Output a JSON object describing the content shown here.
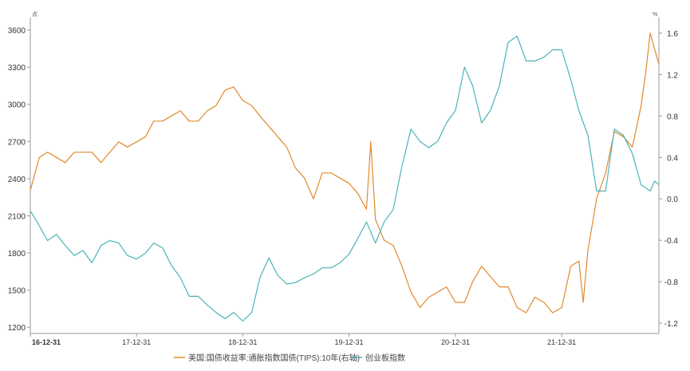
{
  "chart_data": {
    "type": "line",
    "title": "",
    "left_axis": {
      "unit": "点",
      "ylim": [
        1150,
        3700
      ],
      "ticks": [
        1200,
        1500,
        1800,
        2100,
        2400,
        2700,
        3000,
        3300,
        3600
      ],
      "tick_labels": [
        "1200",
        "1500",
        "1800",
        "2100",
        "2400",
        "2700",
        "3000",
        "3300",
        "3600"
      ]
    },
    "right_axis": {
      "unit": "%",
      "ylim": [
        -1.3,
        1.75
      ],
      "ticks": [
        -1.2,
        -0.8,
        -0.4,
        0.0,
        0.4,
        0.8,
        1.2,
        1.6
      ],
      "tick_labels": [
        "-1.2",
        "-0.8",
        "-0.4",
        "0.0",
        "0.4",
        "0.8",
        "1.2",
        "1.6"
      ]
    },
    "x_axis": {
      "range": [
        "2016-12-31",
        "2022-11-30"
      ],
      "ticks": [
        "2016-12-31",
        "2017-12-31",
        "2018-12-31",
        "2019-12-31",
        "2020-12-31",
        "2021-12-31"
      ],
      "tick_labels": [
        "16-12-31",
        "17-12-31",
        "18-12-31",
        "19-12-31",
        "20-12-31",
        "21-12-31"
      ]
    },
    "grid": false,
    "legend_position": "bottom",
    "series": [
      {
        "name": "美国:国债收益率:通胀指数国债(TIPS):10年(右轴)",
        "axis": "right",
        "color": "#E08A2C",
        "points": [
          [
            "2016-12-31",
            0.08
          ],
          [
            "2017-01-31",
            0.4
          ],
          [
            "2017-02-28",
            0.45
          ],
          [
            "2017-03-31",
            0.4
          ],
          [
            "2017-04-30",
            0.35
          ],
          [
            "2017-05-31",
            0.45
          ],
          [
            "2017-06-30",
            0.45
          ],
          [
            "2017-07-31",
            0.45
          ],
          [
            "2017-08-31",
            0.35
          ],
          [
            "2017-09-30",
            0.45
          ],
          [
            "2017-10-31",
            0.55
          ],
          [
            "2017-11-30",
            0.5
          ],
          [
            "2017-12-31",
            0.55
          ],
          [
            "2018-01-31",
            0.6
          ],
          [
            "2018-02-28",
            0.75
          ],
          [
            "2018-03-31",
            0.75
          ],
          [
            "2018-04-30",
            0.8
          ],
          [
            "2018-05-31",
            0.85
          ],
          [
            "2018-06-30",
            0.75
          ],
          [
            "2018-07-31",
            0.75
          ],
          [
            "2018-08-31",
            0.85
          ],
          [
            "2018-09-30",
            0.9
          ],
          [
            "2018-10-31",
            1.05
          ],
          [
            "2018-11-30",
            1.08
          ],
          [
            "2018-12-31",
            0.95
          ],
          [
            "2019-01-31",
            0.9
          ],
          [
            "2019-02-28",
            0.8
          ],
          [
            "2019-03-31",
            0.7
          ],
          [
            "2019-04-30",
            0.6
          ],
          [
            "2019-05-31",
            0.5
          ],
          [
            "2019-06-30",
            0.3
          ],
          [
            "2019-07-31",
            0.2
          ],
          [
            "2019-08-31",
            0.0
          ],
          [
            "2019-09-30",
            0.25
          ],
          [
            "2019-10-31",
            0.25
          ],
          [
            "2019-11-30",
            0.2
          ],
          [
            "2019-12-31",
            0.15
          ],
          [
            "2020-01-31",
            0.05
          ],
          [
            "2020-02-29",
            -0.1
          ],
          [
            "2020-03-15",
            0.55
          ],
          [
            "2020-03-31",
            -0.2
          ],
          [
            "2020-04-30",
            -0.4
          ],
          [
            "2020-05-31",
            -0.45
          ],
          [
            "2020-06-30",
            -0.65
          ],
          [
            "2020-07-31",
            -0.9
          ],
          [
            "2020-08-31",
            -1.05
          ],
          [
            "2020-09-30",
            -0.95
          ],
          [
            "2020-10-31",
            -0.9
          ],
          [
            "2020-11-30",
            -0.85
          ],
          [
            "2020-12-31",
            -1.0
          ],
          [
            "2021-01-31",
            -1.0
          ],
          [
            "2021-02-28",
            -0.8
          ],
          [
            "2021-03-31",
            -0.65
          ],
          [
            "2021-04-30",
            -0.75
          ],
          [
            "2021-05-31",
            -0.85
          ],
          [
            "2021-06-30",
            -0.85
          ],
          [
            "2021-07-31",
            -1.05
          ],
          [
            "2021-08-31",
            -1.1
          ],
          [
            "2021-09-30",
            -0.95
          ],
          [
            "2021-10-31",
            -1.0
          ],
          [
            "2021-11-30",
            -1.1
          ],
          [
            "2021-12-31",
            -1.05
          ],
          [
            "2022-01-31",
            -0.65
          ],
          [
            "2022-02-28",
            -0.6
          ],
          [
            "2022-03-15",
            -1.0
          ],
          [
            "2022-03-31",
            -0.5
          ],
          [
            "2022-04-30",
            0.0
          ],
          [
            "2022-05-31",
            0.25
          ],
          [
            "2022-06-30",
            0.65
          ],
          [
            "2022-07-31",
            0.6
          ],
          [
            "2022-08-31",
            0.5
          ],
          [
            "2022-09-30",
            0.9
          ],
          [
            "2022-10-15",
            1.2
          ],
          [
            "2022-10-31",
            1.6
          ],
          [
            "2022-11-15",
            1.45
          ],
          [
            "2022-11-30",
            1.3
          ]
        ]
      },
      {
        "name": "创业板指数",
        "axis": "left",
        "color": "#4DB3B5",
        "points": [
          [
            "2016-12-31",
            2140
          ],
          [
            "2017-01-31",
            2020
          ],
          [
            "2017-02-28",
            1900
          ],
          [
            "2017-03-31",
            1950
          ],
          [
            "2017-04-30",
            1860
          ],
          [
            "2017-05-31",
            1780
          ],
          [
            "2017-06-30",
            1820
          ],
          [
            "2017-07-31",
            1720
          ],
          [
            "2017-08-31",
            1860
          ],
          [
            "2017-09-30",
            1900
          ],
          [
            "2017-10-31",
            1880
          ],
          [
            "2017-11-30",
            1780
          ],
          [
            "2017-12-31",
            1750
          ],
          [
            "2018-01-31",
            1800
          ],
          [
            "2018-02-28",
            1880
          ],
          [
            "2018-03-31",
            1840
          ],
          [
            "2018-04-30",
            1700
          ],
          [
            "2018-05-31",
            1600
          ],
          [
            "2018-06-30",
            1450
          ],
          [
            "2018-07-31",
            1450
          ],
          [
            "2018-08-31",
            1380
          ],
          [
            "2018-09-30",
            1320
          ],
          [
            "2018-10-31",
            1270
          ],
          [
            "2018-11-30",
            1320
          ],
          [
            "2018-12-31",
            1250
          ],
          [
            "2019-01-31",
            1320
          ],
          [
            "2019-02-28",
            1600
          ],
          [
            "2019-03-31",
            1760
          ],
          [
            "2019-04-30",
            1620
          ],
          [
            "2019-05-31",
            1550
          ],
          [
            "2019-06-30",
            1560
          ],
          [
            "2019-07-31",
            1600
          ],
          [
            "2019-08-31",
            1630
          ],
          [
            "2019-09-30",
            1680
          ],
          [
            "2019-10-31",
            1680
          ],
          [
            "2019-11-30",
            1720
          ],
          [
            "2019-12-31",
            1790
          ],
          [
            "2020-01-31",
            1920
          ],
          [
            "2020-02-29",
            2050
          ],
          [
            "2020-03-31",
            1880
          ],
          [
            "2020-04-30",
            2050
          ],
          [
            "2020-05-31",
            2150
          ],
          [
            "2020-06-30",
            2500
          ],
          [
            "2020-07-31",
            2800
          ],
          [
            "2020-08-31",
            2700
          ],
          [
            "2020-09-30",
            2650
          ],
          [
            "2020-10-31",
            2700
          ],
          [
            "2020-11-30",
            2850
          ],
          [
            "2020-12-31",
            2950
          ],
          [
            "2021-01-31",
            3300
          ],
          [
            "2021-02-28",
            3150
          ],
          [
            "2021-03-31",
            2850
          ],
          [
            "2021-04-30",
            2950
          ],
          [
            "2021-05-31",
            3150
          ],
          [
            "2021-06-30",
            3500
          ],
          [
            "2021-07-31",
            3550
          ],
          [
            "2021-08-31",
            3350
          ],
          [
            "2021-09-30",
            3350
          ],
          [
            "2021-10-31",
            3380
          ],
          [
            "2021-11-30",
            3440
          ],
          [
            "2021-12-31",
            3440
          ],
          [
            "2022-01-31",
            3200
          ],
          [
            "2022-02-28",
            2950
          ],
          [
            "2022-03-31",
            2750
          ],
          [
            "2022-04-30",
            2300
          ],
          [
            "2022-05-31",
            2300
          ],
          [
            "2022-06-30",
            2800
          ],
          [
            "2022-07-31",
            2750
          ],
          [
            "2022-08-31",
            2600
          ],
          [
            "2022-09-30",
            2350
          ],
          [
            "2022-10-31",
            2300
          ],
          [
            "2022-11-15",
            2380
          ],
          [
            "2022-11-30",
            2350
          ]
        ]
      }
    ]
  }
}
